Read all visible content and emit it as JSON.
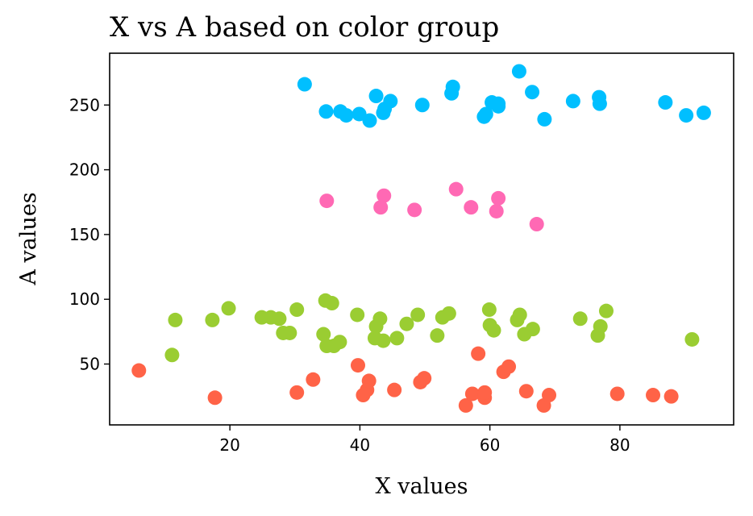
{
  "chart_data": {
    "type": "scatter",
    "title": "X vs A based on color group",
    "xlabel": "X values",
    "ylabel": "A values",
    "xlim": [
      1.5,
      97.5
    ],
    "ylim": [
      3,
      290
    ],
    "xticks": [
      20,
      40,
      60,
      80
    ],
    "yticks": [
      50,
      100,
      150,
      200,
      250
    ],
    "grid": false,
    "legend": "none",
    "series": [
      {
        "color": "#00BFFF",
        "points": [
          [
            31.5,
            266
          ],
          [
            34.8,
            245
          ],
          [
            37.0,
            245
          ],
          [
            37.9,
            242
          ],
          [
            39.9,
            243
          ],
          [
            41.5,
            238
          ],
          [
            42.5,
            257
          ],
          [
            43.6,
            244
          ],
          [
            43.8,
            247
          ],
          [
            44.7,
            253
          ],
          [
            49.6,
            250
          ],
          [
            54.1,
            259
          ],
          [
            54.3,
            264
          ],
          [
            59.1,
            241
          ],
          [
            59.4,
            243
          ],
          [
            60.3,
            252
          ],
          [
            61.3,
            249
          ],
          [
            61.3,
            251
          ],
          [
            64.5,
            276
          ],
          [
            66.5,
            260
          ],
          [
            68.4,
            239
          ],
          [
            72.8,
            253
          ],
          [
            76.8,
            256
          ],
          [
            76.9,
            251
          ],
          [
            87.0,
            252
          ],
          [
            90.2,
            242
          ],
          [
            92.9,
            244
          ]
        ]
      },
      {
        "color": "#FF69B4",
        "points": [
          [
            34.9,
            176
          ],
          [
            43.2,
            171
          ],
          [
            43.7,
            180
          ],
          [
            48.4,
            169
          ],
          [
            54.8,
            185
          ],
          [
            57.1,
            171
          ],
          [
            61.0,
            168
          ],
          [
            61.3,
            178
          ],
          [
            67.2,
            158
          ]
        ]
      },
      {
        "color": "#9ACD32",
        "points": [
          [
            11.1,
            57
          ],
          [
            11.6,
            84
          ],
          [
            17.3,
            84
          ],
          [
            19.8,
            93
          ],
          [
            24.9,
            86
          ],
          [
            26.3,
            86
          ],
          [
            27.6,
            85
          ],
          [
            28.2,
            74
          ],
          [
            29.2,
            74
          ],
          [
            30.3,
            92
          ],
          [
            34.4,
            73
          ],
          [
            34.7,
            99
          ],
          [
            34.9,
            64
          ],
          [
            35.7,
            97
          ],
          [
            36.0,
            64
          ],
          [
            36.9,
            67
          ],
          [
            39.6,
            88
          ],
          [
            42.3,
            70
          ],
          [
            42.5,
            79
          ],
          [
            43.1,
            85
          ],
          [
            43.6,
            68
          ],
          [
            45.7,
            70
          ],
          [
            47.2,
            81
          ],
          [
            48.9,
            88
          ],
          [
            51.9,
            72
          ],
          [
            52.7,
            86
          ],
          [
            53.7,
            89
          ],
          [
            59.9,
            92
          ],
          [
            60.0,
            80
          ],
          [
            60.6,
            76
          ],
          [
            64.2,
            84
          ],
          [
            64.6,
            88
          ],
          [
            65.3,
            73
          ],
          [
            66.6,
            77
          ],
          [
            73.9,
            85
          ],
          [
            76.6,
            72
          ],
          [
            77.0,
            79
          ],
          [
            77.9,
            91
          ],
          [
            91.1,
            69
          ]
        ]
      },
      {
        "color": "#FF6347",
        "points": [
          [
            6.0,
            45
          ],
          [
            17.7,
            24
          ],
          [
            30.3,
            28
          ],
          [
            32.8,
            38
          ],
          [
            39.7,
            49
          ],
          [
            40.5,
            26
          ],
          [
            41.1,
            30
          ],
          [
            41.4,
            37
          ],
          [
            45.3,
            30
          ],
          [
            49.3,
            36
          ],
          [
            49.9,
            39
          ],
          [
            56.3,
            18
          ],
          [
            57.3,
            27
          ],
          [
            58.2,
            58
          ],
          [
            59.2,
            24
          ],
          [
            59.2,
            28
          ],
          [
            62.1,
            44
          ],
          [
            62.9,
            48
          ],
          [
            65.6,
            29
          ],
          [
            68.3,
            18
          ],
          [
            69.1,
            26
          ],
          [
            79.6,
            27
          ],
          [
            85.1,
            26
          ],
          [
            87.9,
            25
          ]
        ]
      }
    ]
  }
}
